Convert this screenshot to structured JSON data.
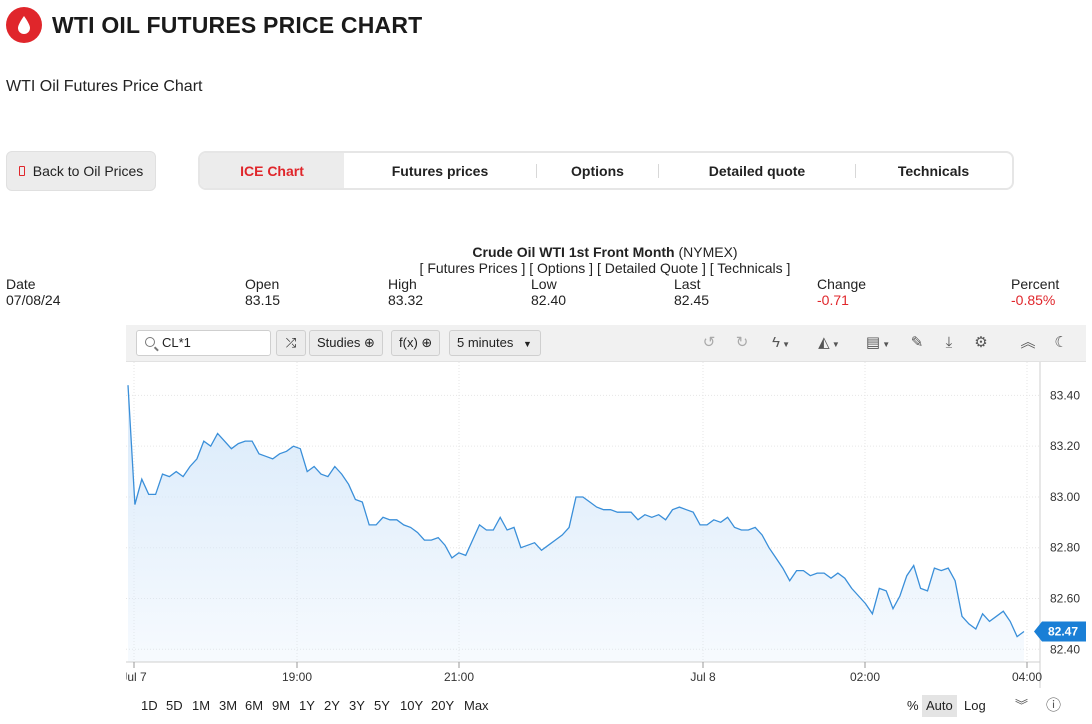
{
  "header": {
    "title": "WTI OIL FUTURES PRICE CHART",
    "subtitle": "WTI Oil Futures Price Chart"
  },
  "back_button": {
    "label": "Back to Oil Prices"
  },
  "tabs": [
    {
      "label": "ICE Chart",
      "active": true
    },
    {
      "label": "Futures prices"
    },
    {
      "label": "Options"
    },
    {
      "label": "Detailed quote"
    },
    {
      "label": "Technicals"
    }
  ],
  "quote": {
    "name": "Crude Oil WTI 1st Front Month",
    "exchange": "(NYMEX)",
    "links": "[ Futures Prices ] [ Options ] [ Detailed Quote ] [ Technicals ]",
    "stats": [
      {
        "label": "Date",
        "value": "07/08/24"
      },
      {
        "label": "Open",
        "value": "83.15"
      },
      {
        "label": "High",
        "value": "83.32"
      },
      {
        "label": "Low",
        "value": "82.40"
      },
      {
        "label": "Last",
        "value": "82.45"
      },
      {
        "label": "Change",
        "value": "-0.71"
      },
      {
        "label": "Percent",
        "value": "-0.85%"
      }
    ],
    "negative_color": "#e0262b"
  },
  "toolbar": {
    "symbol_value": "CL*1",
    "studies_label": "Studies",
    "fx_label": "f(x)",
    "interval_label": "5 minutes"
  },
  "chart_data": {
    "type": "area",
    "x_ticks": [
      "Jul 7",
      "19:00",
      "21:00",
      "Jul 8",
      "02:00",
      "04:00"
    ],
    "y_ticks": [
      "83.40",
      "83.20",
      "83.00",
      "82.80",
      "82.60",
      "82.40"
    ],
    "ylim": [
      82.35,
      83.5
    ],
    "last_value_label": "82.47",
    "grid": true,
    "line_color": "#3a8fd9",
    "fill_color": "#d6e8fa",
    "series": [
      {
        "values": [
          83.44,
          82.97,
          83.07,
          83.01,
          83.01,
          83.09,
          83.08,
          83.1,
          83.08,
          83.12,
          83.15,
          83.22,
          83.2,
          83.25,
          83.22,
          83.19,
          83.21,
          83.22,
          83.22,
          83.17,
          83.16,
          83.15,
          83.17,
          83.18,
          83.2,
          83.19,
          83.1,
          83.12,
          83.09,
          83.08,
          83.12,
          83.09,
          83.05,
          82.99,
          82.98,
          82.89,
          82.89,
          82.92,
          82.91,
          82.91,
          82.89,
          82.88,
          82.86,
          82.83,
          82.83,
          82.84,
          82.81,
          82.76,
          82.78,
          82.77,
          82.83,
          82.89,
          82.87,
          82.87,
          82.92,
          82.87,
          82.88,
          82.8,
          82.81,
          82.82,
          82.79,
          82.81,
          82.83,
          82.85,
          82.88,
          83.0,
          83.0,
          82.98,
          82.96,
          82.95,
          82.95,
          82.94,
          82.94,
          82.94,
          82.91,
          82.93,
          82.92,
          82.93,
          82.91,
          82.95,
          82.96,
          82.95,
          82.94,
          82.89,
          82.89,
          82.91,
          82.9,
          82.92,
          82.88,
          82.87,
          82.87,
          82.88,
          82.85,
          82.8,
          82.76,
          82.72,
          82.67,
          82.71,
          82.71,
          82.69,
          82.7,
          82.7,
          82.68,
          82.7,
          82.68,
          82.64,
          82.61,
          82.58,
          82.54,
          82.64,
          82.63,
          82.56,
          82.61,
          82.69,
          82.73,
          82.64,
          82.63,
          82.72,
          82.71,
          82.72,
          82.67,
          82.53,
          82.5,
          82.48,
          82.54,
          82.51,
          82.53,
          82.55,
          82.51,
          82.45,
          82.47
        ]
      }
    ]
  },
  "range_bar": {
    "ranges": [
      "1D",
      "5D",
      "1M",
      "3M",
      "6M",
      "9M",
      "1Y",
      "2Y",
      "3Y",
      "5Y",
      "10Y",
      "20Y",
      "Max"
    ],
    "percent_label": "%",
    "auto_label": "Auto",
    "log_label": "Log"
  },
  "icons": [
    "drop-icon",
    "search-icon",
    "compare-icon",
    "undo-icon",
    "redo-icon",
    "lightning-icon",
    "chart-type-icon",
    "template-icon",
    "draw-icon",
    "download-icon",
    "settings-icon",
    "collapse-icon",
    "night-mode-icon",
    "chevrons-down-icon",
    "help-icon"
  ]
}
